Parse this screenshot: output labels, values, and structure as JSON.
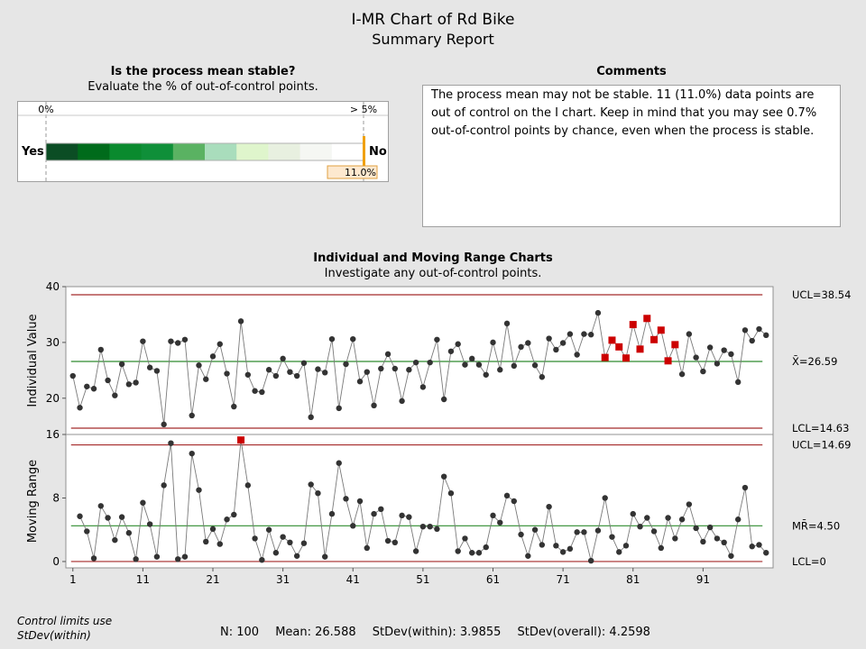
{
  "header": {
    "title": "I-MR Chart of Rd Bike",
    "subtitle": "Summary Report"
  },
  "stability": {
    "question": "Is the process mean stable?",
    "instruction": "Evaluate the % of out-of-control points.",
    "scale_left": "0%",
    "scale_right": "> 5%",
    "yes_label": "Yes",
    "no_label": "No",
    "value_label": "11.0%",
    "value_percent": 11.0,
    "gradient_colors": [
      "#0b4d24",
      "#006b1b",
      "#0a8a2e",
      "#0f8f39",
      "#5ab262",
      "#a9ddbc",
      "#dff5cc",
      "#e8f0e0",
      "#f5f7f3",
      "#ffffff"
    ],
    "marker_color": "#f0a000"
  },
  "comments": {
    "heading": "Comments",
    "text": "The process mean may not be stable. 11 (11.0%) data points are out of control on the I chart. Keep in mind that you may see 0.7% out-of-control points by chance, even when the process is stable."
  },
  "charts_section": {
    "heading": "Individual and Moving Range Charts",
    "instruction": "Investigate any out-of-control points."
  },
  "chart_data": [
    {
      "type": "line",
      "name": "I chart",
      "ylabel": "Individual Value",
      "ylim": [
        13.5,
        40
      ],
      "yticks": [
        20,
        30,
        40
      ],
      "x": [
        1,
        2,
        3,
        4,
        5,
        6,
        7,
        8,
        9,
        10,
        11,
        12,
        13,
        14,
        15,
        16,
        17,
        18,
        19,
        20,
        21,
        22,
        23,
        24,
        25,
        26,
        27,
        28,
        29,
        30,
        31,
        32,
        33,
        34,
        35,
        36,
        37,
        38,
        39,
        40,
        41,
        42,
        43,
        44,
        45,
        46,
        47,
        48,
        49,
        50,
        51,
        52,
        53,
        54,
        55,
        56,
        57,
        58,
        59,
        60,
        61,
        62,
        63,
        64,
        65,
        66,
        67,
        68,
        69,
        70,
        71,
        72,
        73,
        74,
        75,
        76,
        77,
        78,
        79,
        80,
        81,
        82,
        83,
        84,
        85,
        86,
        87,
        88,
        89,
        90,
        91,
        92,
        93,
        94,
        95,
        96,
        97,
        98,
        99,
        100
      ],
      "values": [
        24.0,
        18.3,
        22.1,
        21.7,
        28.7,
        23.2,
        20.5,
        26.1,
        22.5,
        22.8,
        30.2,
        25.5,
        24.9,
        15.3,
        30.2,
        29.9,
        30.5,
        16.9,
        25.9,
        23.4,
        27.5,
        29.7,
        24.4,
        18.5,
        33.8,
        24.2,
        21.3,
        21.1,
        25.1,
        24.0,
        27.1,
        24.7,
        24.0,
        26.3,
        16.6,
        25.2,
        24.6,
        30.6,
        18.2,
        26.1,
        30.6,
        23.0,
        24.7,
        18.7,
        25.3,
        27.9,
        25.3,
        19.5,
        25.1,
        26.4,
        22.0,
        26.4,
        30.5,
        19.8,
        28.4,
        29.7,
        26.0,
        27.1,
        26.0,
        24.2,
        30.0,
        25.1,
        33.4,
        25.8,
        29.2,
        29.9,
        25.9,
        23.8,
        30.7,
        28.7,
        29.9,
        31.5,
        27.8,
        31.5,
        31.4,
        35.3,
        27.3,
        30.4,
        29.2,
        27.2,
        33.2,
        28.8,
        34.3,
        30.5,
        32.2,
        26.7,
        29.6,
        24.3,
        31.5,
        27.3,
        24.8,
        29.1,
        26.2,
        28.6,
        27.9,
        22.9,
        32.2,
        30.3,
        32.4,
        31.3
      ],
      "out_of_control_points": [
        77,
        78,
        79,
        80,
        81,
        82,
        83,
        84,
        85,
        86,
        87
      ],
      "center_line": {
        "value": 26.59,
        "label": "X̄=26.59"
      },
      "ucl": {
        "value": 38.54,
        "label": "UCL=38.54"
      },
      "lcl": {
        "value": 14.63,
        "label": "LCL=14.63"
      }
    },
    {
      "type": "line",
      "name": "MR chart",
      "ylabel": "Moving Range",
      "ylim": [
        -0.8,
        16
      ],
      "yticks": [
        0,
        8,
        16
      ],
      "x": [
        2,
        3,
        4,
        5,
        6,
        7,
        8,
        9,
        10,
        11,
        12,
        13,
        14,
        15,
        16,
        17,
        18,
        19,
        20,
        21,
        22,
        23,
        24,
        25,
        26,
        27,
        28,
        29,
        30,
        31,
        32,
        33,
        34,
        35,
        36,
        37,
        38,
        39,
        40,
        41,
        42,
        43,
        44,
        45,
        46,
        47,
        48,
        49,
        50,
        51,
        52,
        53,
        54,
        55,
        56,
        57,
        58,
        59,
        60,
        61,
        62,
        63,
        64,
        65,
        66,
        67,
        68,
        69,
        70,
        71,
        72,
        73,
        74,
        75,
        76,
        77,
        78,
        79,
        80,
        81,
        82,
        83,
        84,
        85,
        86,
        87,
        88,
        89,
        90,
        91,
        92,
        93,
        94,
        95,
        96,
        97,
        98,
        99,
        100
      ],
      "values": [
        5.7,
        3.8,
        0.4,
        7.0,
        5.5,
        2.7,
        5.6,
        3.6,
        0.3,
        7.4,
        4.7,
        0.6,
        9.6,
        14.9,
        0.3,
        0.6,
        13.6,
        9.0,
        2.5,
        4.1,
        2.2,
        5.3,
        5.9,
        15.3,
        9.6,
        2.9,
        0.2,
        4.0,
        1.1,
        3.1,
        2.4,
        0.7,
        2.3,
        9.7,
        8.6,
        0.6,
        6.0,
        12.4,
        7.9,
        4.5,
        7.6,
        1.7,
        6.0,
        6.6,
        2.6,
        2.4,
        5.8,
        5.6,
        1.3,
        4.4,
        4.4,
        4.1,
        10.7,
        8.6,
        1.3,
        2.9,
        1.1,
        1.1,
        1.8,
        5.8,
        4.9,
        8.3,
        7.6,
        3.4,
        0.7,
        4.0,
        2.1,
        6.9,
        2.0,
        1.2,
        1.6,
        3.7,
        3.7,
        0.1,
        3.9,
        8.0,
        3.1,
        1.2,
        2.0,
        6.0,
        4.4,
        5.5,
        3.8,
        1.7,
        5.5,
        2.9,
        5.3,
        7.2,
        4.2,
        2.5,
        4.3,
        2.9,
        2.4,
        0.7,
        5.3,
        9.3,
        1.9,
        2.1,
        1.1
      ],
      "out_of_control_points": [
        25
      ],
      "center_line": {
        "value": 4.5,
        "label": "MR̄=4.50"
      },
      "ucl": {
        "value": 14.69,
        "label": "UCL=14.69"
      },
      "lcl": {
        "value": 0,
        "label": "LCL=0"
      }
    }
  ],
  "x_axis": {
    "ticks": [
      1,
      11,
      21,
      31,
      41,
      51,
      61,
      71,
      81,
      91
    ],
    "range": [
      0,
      101
    ]
  },
  "colors": {
    "limit_line": "#a52a2a",
    "center_line": "#2e8b2e",
    "point": "#333333",
    "out_of_control": "#cc0000",
    "connector": "#7a7a7a"
  },
  "footer": {
    "note_line1": "Control limits use",
    "note_line2": "StDev(within)",
    "n": "N: 100",
    "mean": "Mean: 26.588",
    "stdev_within": "StDev(within): 3.9855",
    "stdev_overall": "StDev(overall): 4.2598"
  }
}
